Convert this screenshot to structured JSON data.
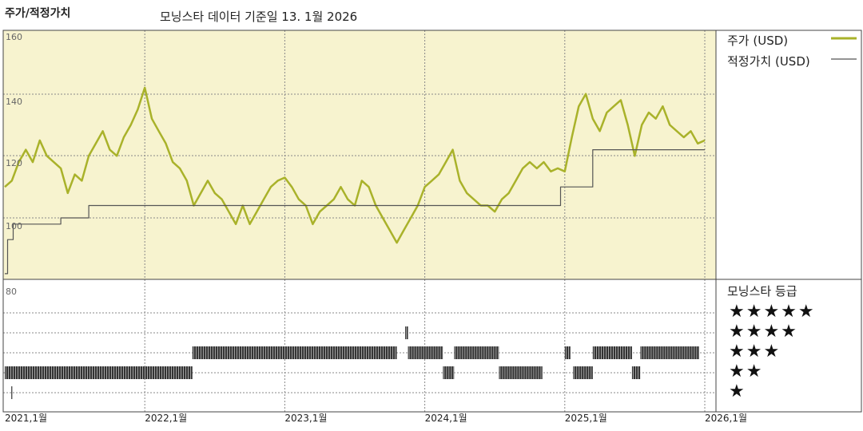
{
  "header": {
    "title": "주가/적정가치",
    "subtitle": "모닝스타 데이터 기준일 13. 1월 2026"
  },
  "legend": {
    "price": "주가 (USD)",
    "fair_value": "적정가치 (USD)",
    "price_color": "#a9b22a",
    "fair_value_color": "#555555"
  },
  "rating_panel": {
    "title": "모닝스타 등급",
    "stars": [
      "★★★★★",
      "★★★★",
      "★★★",
      "★★",
      "★"
    ]
  },
  "chart_data": {
    "type": "line",
    "x_axis_labels": [
      "2021,1월",
      "2022,1월",
      "2023,1월",
      "2024,1월",
      "2025,1월",
      "2026,1월"
    ],
    "y_axis_labels": [
      "160",
      "140",
      "120",
      "100",
      "80"
    ],
    "ylim": [
      80,
      160
    ],
    "background_color": "#f7f3cf",
    "series": [
      {
        "name": "주가 (USD)",
        "points": [
          [
            2021.0,
            110
          ],
          [
            2021.05,
            112
          ],
          [
            2021.1,
            118
          ],
          [
            2021.15,
            122
          ],
          [
            2021.2,
            118
          ],
          [
            2021.25,
            125
          ],
          [
            2021.3,
            120
          ],
          [
            2021.35,
            118
          ],
          [
            2021.4,
            116
          ],
          [
            2021.45,
            108
          ],
          [
            2021.5,
            114
          ],
          [
            2021.55,
            112
          ],
          [
            2021.6,
            120
          ],
          [
            2021.65,
            124
          ],
          [
            2021.7,
            128
          ],
          [
            2021.75,
            122
          ],
          [
            2021.8,
            120
          ],
          [
            2021.85,
            126
          ],
          [
            2021.9,
            130
          ],
          [
            2021.95,
            135
          ],
          [
            2022.0,
            142
          ],
          [
            2022.05,
            132
          ],
          [
            2022.1,
            128
          ],
          [
            2022.15,
            124
          ],
          [
            2022.2,
            118
          ],
          [
            2022.25,
            116
          ],
          [
            2022.3,
            112
          ],
          [
            2022.35,
            104
          ],
          [
            2022.4,
            108
          ],
          [
            2022.45,
            112
          ],
          [
            2022.5,
            108
          ],
          [
            2022.55,
            106
          ],
          [
            2022.6,
            102
          ],
          [
            2022.65,
            98
          ],
          [
            2022.7,
            104
          ],
          [
            2022.75,
            98
          ],
          [
            2022.8,
            102
          ],
          [
            2022.85,
            106
          ],
          [
            2022.9,
            110
          ],
          [
            2022.95,
            112
          ],
          [
            2023.0,
            113
          ],
          [
            2023.05,
            110
          ],
          [
            2023.1,
            106
          ],
          [
            2023.15,
            104
          ],
          [
            2023.2,
            98
          ],
          [
            2023.25,
            102
          ],
          [
            2023.3,
            104
          ],
          [
            2023.35,
            106
          ],
          [
            2023.4,
            110
          ],
          [
            2023.45,
            106
          ],
          [
            2023.5,
            104
          ],
          [
            2023.55,
            112
          ],
          [
            2023.6,
            110
          ],
          [
            2023.65,
            104
          ],
          [
            2023.7,
            100
          ],
          [
            2023.75,
            96
          ],
          [
            2023.8,
            92
          ],
          [
            2023.85,
            96
          ],
          [
            2023.9,
            100
          ],
          [
            2023.95,
            104
          ],
          [
            2024.0,
            110
          ],
          [
            2024.05,
            112
          ],
          [
            2024.1,
            114
          ],
          [
            2024.15,
            118
          ],
          [
            2024.2,
            122
          ],
          [
            2024.25,
            112
          ],
          [
            2024.3,
            108
          ],
          [
            2024.35,
            106
          ],
          [
            2024.4,
            104
          ],
          [
            2024.45,
            104
          ],
          [
            2024.5,
            102
          ],
          [
            2024.55,
            106
          ],
          [
            2024.6,
            108
          ],
          [
            2024.65,
            112
          ],
          [
            2024.7,
            116
          ],
          [
            2024.75,
            118
          ],
          [
            2024.8,
            116
          ],
          [
            2024.85,
            118
          ],
          [
            2024.9,
            115
          ],
          [
            2024.95,
            116
          ],
          [
            2025.0,
            115
          ],
          [
            2025.05,
            126
          ],
          [
            2025.1,
            136
          ],
          [
            2025.15,
            140
          ],
          [
            2025.2,
            132
          ],
          [
            2025.25,
            128
          ],
          [
            2025.3,
            134
          ],
          [
            2025.35,
            136
          ],
          [
            2025.4,
            138
          ],
          [
            2025.45,
            130
          ],
          [
            2025.5,
            120
          ],
          [
            2025.55,
            130
          ],
          [
            2025.6,
            134
          ],
          [
            2025.65,
            132
          ],
          [
            2025.7,
            136
          ],
          [
            2025.75,
            130
          ],
          [
            2025.8,
            128
          ],
          [
            2025.85,
            126
          ],
          [
            2025.9,
            128
          ],
          [
            2025.95,
            124
          ],
          [
            2026.0,
            125
          ]
        ]
      },
      {
        "name": "적정가치 (USD)",
        "points": [
          [
            2021.0,
            82
          ],
          [
            2021.02,
            82
          ],
          [
            2021.02,
            93
          ],
          [
            2021.06,
            93
          ],
          [
            2021.06,
            98
          ],
          [
            2021.4,
            98
          ],
          [
            2021.4,
            100
          ],
          [
            2021.6,
            100
          ],
          [
            2021.6,
            104
          ],
          [
            2024.97,
            104
          ],
          [
            2024.97,
            110
          ],
          [
            2025.2,
            110
          ],
          [
            2025.2,
            122
          ],
          [
            2026.0,
            122
          ]
        ]
      }
    ],
    "rating_segments": [
      {
        "stars": 2,
        "from": 2021.0,
        "to": 2022.34
      },
      {
        "stars": 3,
        "from": 2022.34,
        "to": 2023.8
      },
      {
        "stars": 4,
        "from": 2023.86,
        "to": 2023.88
      },
      {
        "stars": 3,
        "from": 2023.88,
        "to": 2024.13
      },
      {
        "stars": 2,
        "from": 2024.13,
        "to": 2024.21
      },
      {
        "stars": 3,
        "from": 2024.21,
        "to": 2024.53
      },
      {
        "stars": 2,
        "from": 2024.53,
        "to": 2024.84
      },
      {
        "stars": 3,
        "from": 2025.0,
        "to": 2025.04
      },
      {
        "stars": 2,
        "from": 2025.06,
        "to": 2025.2
      },
      {
        "stars": 3,
        "from": 2025.2,
        "to": 2025.48
      },
      {
        "stars": 2,
        "from": 2025.48,
        "to": 2025.54
      },
      {
        "stars": 3,
        "from": 2025.54,
        "to": 2025.96
      }
    ],
    "rating_marks": [
      {
        "stars": 1,
        "at": 2021.05
      }
    ]
  }
}
